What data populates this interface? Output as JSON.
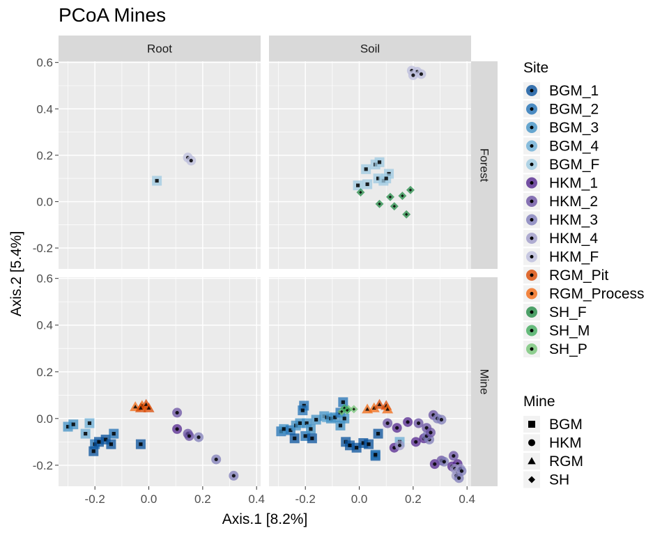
{
  "chart_data": {
    "type": "scatter",
    "title": "PCoA Mines",
    "xlabel": "Axis.1   [8.2%]",
    "ylabel": "Axis.2   [5.4%]",
    "xlim": [
      -0.335,
      0.415
    ],
    "ylim": [
      -0.29,
      0.605
    ],
    "x_ticks": [
      -0.2,
      0.0,
      0.2,
      0.4
    ],
    "x_tick_labels": [
      "-0.2",
      "0.0",
      "0.2",
      "0.4"
    ],
    "y_ticks": [
      -0.2,
      0.0,
      0.2,
      0.4,
      0.6
    ],
    "y_tick_labels": [
      "-0.2",
      "0.0",
      "0.2",
      "0.4",
      "0.6"
    ],
    "grid": true,
    "facet_cols": [
      "Root",
      "Soil"
    ],
    "facet_rows": [
      "Forest",
      "Mine"
    ],
    "legend_position": "right",
    "site_legend": {
      "title": "Site",
      "entries": [
        {
          "name": "BGM_1",
          "color": "#08519C"
        },
        {
          "name": "BGM_2",
          "color": "#2171B5"
        },
        {
          "name": "BGM_3",
          "color": "#4292C6"
        },
        {
          "name": "BGM_4",
          "color": "#6BAED6"
        },
        {
          "name": "BGM_F",
          "color": "#9ECAE1"
        },
        {
          "name": "HKM_1",
          "color": "#54278F"
        },
        {
          "name": "HKM_2",
          "color": "#6A51A3"
        },
        {
          "name": "HKM_3",
          "color": "#807DBA"
        },
        {
          "name": "HKM_4",
          "color": "#9E9AC8"
        },
        {
          "name": "HKM_F",
          "color": "#BCBDDC"
        },
        {
          "name": "RGM_Pit",
          "color": "#D94801"
        },
        {
          "name": "RGM_Process",
          "color": "#F16913"
        },
        {
          "name": "SH_F",
          "color": "#238B45"
        },
        {
          "name": "SH_M",
          "color": "#41AB5D"
        },
        {
          "name": "SH_P",
          "color": "#74C476"
        }
      ]
    },
    "mine_legend": {
      "title": "Mine",
      "entries": [
        {
          "name": "BGM",
          "shape": "square"
        },
        {
          "name": "HKM",
          "shape": "circle"
        },
        {
          "name": "RGM",
          "shape": "triangle"
        },
        {
          "name": "SH",
          "shape": "diamond"
        }
      ]
    },
    "panels": [
      {
        "col": "Root",
        "row": "Forest",
        "points": [
          {
            "site": "BGM_F",
            "mine": "BGM",
            "x": 0.03,
            "y": 0.09
          },
          {
            "site": "HKM_F",
            "mine": "HKM",
            "x": 0.145,
            "y": 0.19
          },
          {
            "site": "HKM_F",
            "mine": "HKM",
            "x": 0.157,
            "y": 0.177
          }
        ]
      },
      {
        "col": "Soil",
        "row": "Forest",
        "points": [
          {
            "site": "HKM_F",
            "mine": "HKM",
            "x": 0.195,
            "y": 0.565
          },
          {
            "site": "HKM_F",
            "mine": "HKM",
            "x": 0.215,
            "y": 0.56
          },
          {
            "site": "HKM_F",
            "mine": "HKM",
            "x": 0.2,
            "y": 0.545
          },
          {
            "site": "HKM_F",
            "mine": "HKM",
            "x": 0.23,
            "y": 0.55
          },
          {
            "site": "BGM_F",
            "mine": "BGM",
            "x": 0.025,
            "y": 0.14
          },
          {
            "site": "BGM_F",
            "mine": "BGM",
            "x": 0.06,
            "y": 0.16
          },
          {
            "site": "BGM_F",
            "mine": "BGM",
            "x": 0.075,
            "y": 0.17
          },
          {
            "site": "BGM_F",
            "mine": "BGM",
            "x": 0.11,
            "y": 0.12
          },
          {
            "site": "BGM_F",
            "mine": "BGM",
            "x": -0.005,
            "y": 0.07
          },
          {
            "site": "BGM_F",
            "mine": "BGM",
            "x": 0.03,
            "y": 0.075
          },
          {
            "site": "BGM_F",
            "mine": "BGM",
            "x": 0.07,
            "y": 0.1
          },
          {
            "site": "BGM_F",
            "mine": "BGM",
            "x": 0.09,
            "y": 0.09
          },
          {
            "site": "BGM_F",
            "mine": "BGM",
            "x": 0.1,
            "y": 0.1
          },
          {
            "site": "SH_F",
            "mine": "SH",
            "x": 0.005,
            "y": 0.04
          },
          {
            "site": "SH_F",
            "mine": "SH",
            "x": 0.075,
            "y": -0.01
          },
          {
            "site": "SH_F",
            "mine": "SH",
            "x": 0.115,
            "y": 0.02
          },
          {
            "site": "SH_F",
            "mine": "SH",
            "x": 0.13,
            "y": -0.02
          },
          {
            "site": "SH_F",
            "mine": "SH",
            "x": 0.16,
            "y": 0.025
          },
          {
            "site": "SH_F",
            "mine": "SH",
            "x": 0.19,
            "y": 0.05
          },
          {
            "site": "SH_F",
            "mine": "SH",
            "x": 0.175,
            "y": -0.055
          }
        ]
      },
      {
        "col": "Root",
        "row": "Mine",
        "points": [
          {
            "site": "BGM_3",
            "mine": "BGM",
            "x": -0.3,
            "y": -0.035
          },
          {
            "site": "BGM_3",
            "mine": "BGM",
            "x": -0.28,
            "y": -0.025
          },
          {
            "site": "BGM_4",
            "mine": "BGM",
            "x": -0.22,
            "y": -0.02
          },
          {
            "site": "BGM_4",
            "mine": "BGM",
            "x": -0.235,
            "y": -0.065
          },
          {
            "site": "BGM_2",
            "mine": "BGM",
            "x": -0.2,
            "y": -0.11
          },
          {
            "site": "BGM_1",
            "mine": "BGM",
            "x": -0.185,
            "y": -0.1
          },
          {
            "site": "BGM_1",
            "mine": "BGM",
            "x": -0.16,
            "y": -0.09
          },
          {
            "site": "BGM_1",
            "mine": "BGM",
            "x": -0.14,
            "y": -0.11
          },
          {
            "site": "BGM_2",
            "mine": "BGM",
            "x": -0.13,
            "y": -0.065
          },
          {
            "site": "BGM_1",
            "mine": "BGM",
            "x": -0.03,
            "y": -0.11
          },
          {
            "site": "BGM_1",
            "mine": "BGM",
            "x": -0.205,
            "y": -0.14
          },
          {
            "site": "RGM_Process",
            "mine": "RGM",
            "x": -0.05,
            "y": 0.05
          },
          {
            "site": "RGM_Process",
            "mine": "RGM",
            "x": -0.025,
            "y": 0.055
          },
          {
            "site": "RGM_Pit",
            "mine": "RGM",
            "x": -0.01,
            "y": 0.06
          },
          {
            "site": "RGM_Pit",
            "mine": "RGM",
            "x": 0.0,
            "y": 0.045
          },
          {
            "site": "RGM_Pit",
            "mine": "RGM",
            "x": -0.03,
            "y": 0.045
          },
          {
            "site": "HKM_2",
            "mine": "HKM",
            "x": 0.105,
            "y": 0.025
          },
          {
            "site": "HKM_1",
            "mine": "HKM",
            "x": 0.105,
            "y": -0.045
          },
          {
            "site": "HKM_2",
            "mine": "HKM",
            "x": 0.145,
            "y": -0.065
          },
          {
            "site": "HKM_2",
            "mine": "HKM",
            "x": 0.15,
            "y": -0.075
          },
          {
            "site": "HKM_3",
            "mine": "HKM",
            "x": 0.185,
            "y": -0.08
          },
          {
            "site": "HKM_3",
            "mine": "HKM",
            "x": 0.25,
            "y": -0.175
          },
          {
            "site": "HKM_3",
            "mine": "HKM",
            "x": 0.315,
            "y": -0.245
          }
        ]
      },
      {
        "col": "Soil",
        "row": "Mine",
        "points": [
          {
            "site": "BGM_2",
            "mine": "BGM",
            "x": -0.29,
            "y": -0.055
          },
          {
            "site": "BGM_3",
            "mine": "BGM",
            "x": -0.28,
            "y": -0.045
          },
          {
            "site": "BGM_2",
            "mine": "BGM",
            "x": -0.255,
            "y": -0.05
          },
          {
            "site": "BGM_1",
            "mine": "BGM",
            "x": -0.24,
            "y": -0.085
          },
          {
            "site": "BGM_3",
            "mine": "BGM",
            "x": -0.235,
            "y": -0.03
          },
          {
            "site": "BGM_3",
            "mine": "BGM",
            "x": -0.22,
            "y": -0.02
          },
          {
            "site": "BGM_2",
            "mine": "BGM",
            "x": -0.2,
            "y": -0.075
          },
          {
            "site": "BGM_3",
            "mine": "BGM",
            "x": -0.195,
            "y": -0.02
          },
          {
            "site": "BGM_3",
            "mine": "BGM",
            "x": -0.18,
            "y": -0.045
          },
          {
            "site": "BGM_1",
            "mine": "BGM",
            "x": -0.175,
            "y": -0.085
          },
          {
            "site": "BGM_3",
            "mine": "BGM",
            "x": -0.16,
            "y": -0.005
          },
          {
            "site": "BGM_3",
            "mine": "BGM",
            "x": -0.13,
            "y": 0.01
          },
          {
            "site": "BGM_4",
            "mine": "BGM",
            "x": -0.12,
            "y": 0.005
          },
          {
            "site": "BGM_3",
            "mine": "BGM",
            "x": -0.105,
            "y": 0.0
          },
          {
            "site": "BGM_3",
            "mine": "BGM",
            "x": -0.09,
            "y": 0.005
          },
          {
            "site": "BGM_3",
            "mine": "BGM",
            "x": -0.07,
            "y": -0.03
          },
          {
            "site": "BGM_2",
            "mine": "BGM",
            "x": -0.07,
            "y": 0.025
          },
          {
            "site": "BGM_3",
            "mine": "BGM",
            "x": -0.055,
            "y": 0.0
          },
          {
            "site": "BGM_2",
            "mine": "BGM",
            "x": -0.06,
            "y": 0.07
          },
          {
            "site": "BGM_2",
            "mine": "BGM",
            "x": -0.205,
            "y": 0.055
          },
          {
            "site": "BGM_2",
            "mine": "BGM",
            "x": -0.21,
            "y": 0.035
          },
          {
            "site": "BGM_1",
            "mine": "BGM",
            "x": -0.05,
            "y": -0.1
          },
          {
            "site": "BGM_1",
            "mine": "BGM",
            "x": -0.035,
            "y": -0.115
          },
          {
            "site": "BGM_1",
            "mine": "BGM",
            "x": -0.01,
            "y": -0.125
          },
          {
            "site": "BGM_1",
            "mine": "BGM",
            "x": 0.015,
            "y": -0.105
          },
          {
            "site": "BGM_1",
            "mine": "BGM",
            "x": 0.035,
            "y": -0.11
          },
          {
            "site": "BGM_1",
            "mine": "BGM",
            "x": 0.06,
            "y": -0.16
          },
          {
            "site": "BGM_1",
            "mine": "BGM",
            "x": 0.07,
            "y": -0.065
          },
          {
            "site": "BGM_2",
            "mine": "BGM",
            "x": 0.06,
            "y": -0.155
          },
          {
            "site": "BGM_4",
            "mine": "BGM",
            "x": 0.15,
            "y": -0.1
          },
          {
            "site": "SH_P",
            "mine": "SH",
            "x": -0.065,
            "y": 0.03
          },
          {
            "site": "SH_P",
            "mine": "SH",
            "x": -0.04,
            "y": 0.04
          },
          {
            "site": "SH_M",
            "mine": "SH",
            "x": -0.055,
            "y": 0.045
          },
          {
            "site": "SH_M",
            "mine": "SH",
            "x": -0.045,
            "y": 0.035
          },
          {
            "site": "SH_P",
            "mine": "SH",
            "x": -0.02,
            "y": 0.04
          },
          {
            "site": "RGM_Process",
            "mine": "RGM",
            "x": 0.03,
            "y": 0.04
          },
          {
            "site": "RGM_Process",
            "mine": "RGM",
            "x": 0.055,
            "y": 0.045
          },
          {
            "site": "RGM_Pit",
            "mine": "RGM",
            "x": 0.075,
            "y": 0.06
          },
          {
            "site": "RGM_Pit",
            "mine": "RGM",
            "x": 0.1,
            "y": 0.055
          },
          {
            "site": "RGM_Process",
            "mine": "RGM",
            "x": 0.105,
            "y": 0.04
          },
          {
            "site": "HKM_2",
            "mine": "HKM",
            "x": 0.105,
            "y": -0.02
          },
          {
            "site": "HKM_1",
            "mine": "HKM",
            "x": 0.14,
            "y": -0.04
          },
          {
            "site": "HKM_1",
            "mine": "HKM",
            "x": 0.18,
            "y": -0.015
          },
          {
            "site": "HKM_2",
            "mine": "HKM",
            "x": 0.22,
            "y": -0.02
          },
          {
            "site": "HKM_1",
            "mine": "HKM",
            "x": 0.24,
            "y": -0.085
          },
          {
            "site": "HKM_2",
            "mine": "HKM",
            "x": 0.25,
            "y": -0.04
          },
          {
            "site": "HKM_2",
            "mine": "HKM",
            "x": 0.275,
            "y": 0.015
          },
          {
            "site": "HKM_3",
            "mine": "HKM",
            "x": 0.29,
            "y": 0.0
          },
          {
            "site": "HKM_3",
            "mine": "HKM",
            "x": 0.305,
            "y": -0.005
          },
          {
            "site": "HKM_3",
            "mine": "HKM",
            "x": 0.26,
            "y": -0.09
          },
          {
            "site": "HKM_3",
            "mine": "HKM",
            "x": 0.25,
            "y": -0.075
          },
          {
            "site": "HKM_2",
            "mine": "HKM",
            "x": 0.265,
            "y": -0.06
          },
          {
            "site": "HKM_1",
            "mine": "HKM",
            "x": 0.21,
            "y": -0.1
          },
          {
            "site": "HKM_1",
            "mine": "HKM",
            "x": 0.13,
            "y": -0.125
          },
          {
            "site": "HKM_4",
            "mine": "HKM",
            "x": 0.15,
            "y": -0.115
          },
          {
            "site": "HKM_1",
            "mine": "HKM",
            "x": 0.28,
            "y": -0.195
          },
          {
            "site": "HKM_2",
            "mine": "HKM",
            "x": 0.305,
            "y": -0.18
          },
          {
            "site": "HKM_3",
            "mine": "HKM",
            "x": 0.315,
            "y": -0.185
          },
          {
            "site": "HKM_1",
            "mine": "HKM",
            "x": 0.345,
            "y": -0.205
          },
          {
            "site": "HKM_1",
            "mine": "HKM",
            "x": 0.365,
            "y": -0.195
          },
          {
            "site": "HKM_2",
            "mine": "HKM",
            "x": 0.35,
            "y": -0.16
          },
          {
            "site": "HKM_4",
            "mine": "HKM",
            "x": 0.355,
            "y": -0.215
          },
          {
            "site": "HKM_4",
            "mine": "HKM",
            "x": 0.365,
            "y": -0.23
          },
          {
            "site": "HKM_4",
            "mine": "HKM",
            "x": 0.375,
            "y": -0.215
          },
          {
            "site": "HKM_3",
            "mine": "HKM",
            "x": 0.38,
            "y": -0.225
          },
          {
            "site": "HKM_4",
            "mine": "HKM",
            "x": 0.36,
            "y": -0.245
          },
          {
            "site": "HKM_3",
            "mine": "HKM",
            "x": 0.37,
            "y": -0.255
          }
        ]
      }
    ]
  }
}
